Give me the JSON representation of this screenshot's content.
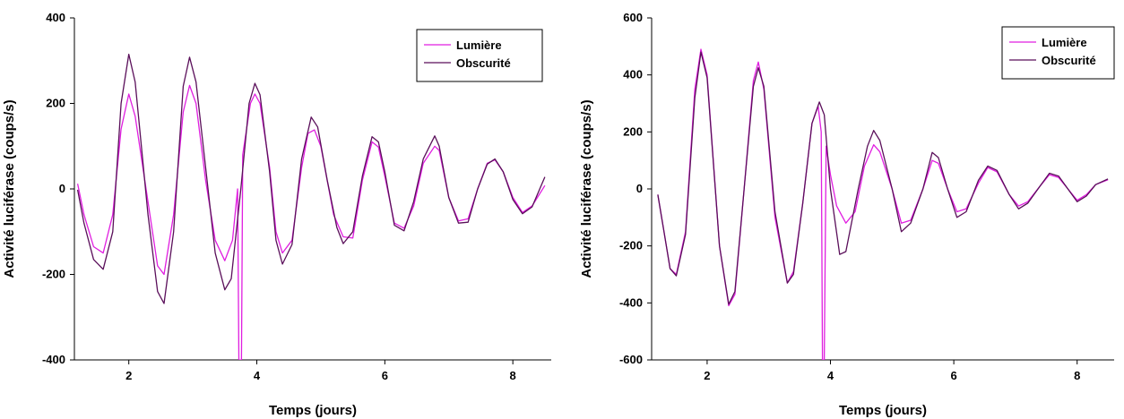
{
  "colors": {
    "lumiere": "#e01ee0",
    "obscurite": "#5a0f5a",
    "axis": "#000000"
  },
  "chart_data": [
    {
      "type": "line",
      "xlabel": "Temps (jours)",
      "ylabel": "Activité luciférase (coups/s)",
      "xlim": [
        1.15,
        8.6
      ],
      "ylim": [
        -400,
        400
      ],
      "xticks": [
        2,
        4,
        6,
        8
      ],
      "yticks": [
        -400,
        -200,
        0,
        200,
        400
      ],
      "grid": false,
      "legend_position": "top-right",
      "series": [
        {
          "name": "Lumière",
          "color_key": "lumiere",
          "points": [
            [
              1.2,
              12
            ],
            [
              1.3,
              -60
            ],
            [
              1.45,
              -135
            ],
            [
              1.6,
              -150
            ],
            [
              1.75,
              -60
            ],
            [
              1.88,
              140
            ],
            [
              2.0,
              222
            ],
            [
              2.1,
              170
            ],
            [
              2.3,
              -30
            ],
            [
              2.45,
              -180
            ],
            [
              2.55,
              -200
            ],
            [
              2.7,
              -60
            ],
            [
              2.85,
              180
            ],
            [
              2.95,
              242
            ],
            [
              3.05,
              200
            ],
            [
              3.2,
              20
            ],
            [
              3.35,
              -120
            ],
            [
              3.5,
              -168
            ],
            [
              3.62,
              -120
            ],
            [
              3.7,
              0
            ],
            [
              3.72,
              -400
            ],
            [
              3.76,
              -400
            ],
            [
              3.78,
              80
            ],
            [
              3.9,
              200
            ],
            [
              3.97,
              222
            ],
            [
              4.05,
              200
            ],
            [
              4.2,
              50
            ],
            [
              4.3,
              -100
            ],
            [
              4.4,
              -150
            ],
            [
              4.55,
              -120
            ],
            [
              4.7,
              50
            ],
            [
              4.8,
              130
            ],
            [
              4.9,
              138
            ],
            [
              5.0,
              100
            ],
            [
              5.2,
              -60
            ],
            [
              5.35,
              -112
            ],
            [
              5.5,
              -115
            ],
            [
              5.65,
              20
            ],
            [
              5.8,
              110
            ],
            [
              5.9,
              98
            ],
            [
              6.0,
              30
            ],
            [
              6.15,
              -80
            ],
            [
              6.3,
              -92
            ],
            [
              6.45,
              -40
            ],
            [
              6.6,
              60
            ],
            [
              6.78,
              100
            ],
            [
              6.85,
              90
            ],
            [
              7.0,
              -20
            ],
            [
              7.15,
              -75
            ],
            [
              7.3,
              -70
            ],
            [
              7.45,
              0
            ],
            [
              7.6,
              60
            ],
            [
              7.72,
              68
            ],
            [
              7.85,
              40
            ],
            [
              8.0,
              -20
            ],
            [
              8.15,
              -55
            ],
            [
              8.3,
              -40
            ],
            [
              8.5,
              8
            ]
          ]
        },
        {
          "name": "Obscurité",
          "color_key": "obscurite",
          "points": [
            [
              1.2,
              -2
            ],
            [
              1.3,
              -80
            ],
            [
              1.45,
              -165
            ],
            [
              1.6,
              -188
            ],
            [
              1.75,
              -100
            ],
            [
              1.88,
              200
            ],
            [
              2.0,
              315
            ],
            [
              2.1,
              250
            ],
            [
              2.3,
              -60
            ],
            [
              2.45,
              -240
            ],
            [
              2.55,
              -268
            ],
            [
              2.7,
              -100
            ],
            [
              2.85,
              240
            ],
            [
              2.95,
              308
            ],
            [
              3.05,
              250
            ],
            [
              3.2,
              50
            ],
            [
              3.35,
              -150
            ],
            [
              3.5,
              -236
            ],
            [
              3.6,
              -210
            ],
            [
              3.75,
              0
            ],
            [
              3.88,
              200
            ],
            [
              3.97,
              247
            ],
            [
              4.05,
              220
            ],
            [
              4.2,
              40
            ],
            [
              4.3,
              -120
            ],
            [
              4.4,
              -176
            ],
            [
              4.55,
              -130
            ],
            [
              4.7,
              70
            ],
            [
              4.85,
              168
            ],
            [
              4.95,
              145
            ],
            [
              5.1,
              20
            ],
            [
              5.25,
              -90
            ],
            [
              5.35,
              -128
            ],
            [
              5.5,
              -100
            ],
            [
              5.65,
              30
            ],
            [
              5.8,
              122
            ],
            [
              5.9,
              110
            ],
            [
              6.0,
              40
            ],
            [
              6.15,
              -85
            ],
            [
              6.3,
              -98
            ],
            [
              6.45,
              -30
            ],
            [
              6.6,
              70
            ],
            [
              6.78,
              124
            ],
            [
              6.85,
              100
            ],
            [
              7.0,
              -20
            ],
            [
              7.15,
              -80
            ],
            [
              7.3,
              -78
            ],
            [
              7.45,
              0
            ],
            [
              7.6,
              58
            ],
            [
              7.72,
              70
            ],
            [
              7.85,
              40
            ],
            [
              8.0,
              -25
            ],
            [
              8.15,
              -58
            ],
            [
              8.3,
              -42
            ],
            [
              8.5,
              28
            ]
          ]
        }
      ]
    },
    {
      "type": "line",
      "xlabel": "Temps (jours)",
      "ylabel": "Activité luciférase (coups/s)",
      "xlim": [
        1.1,
        8.6
      ],
      "ylim": [
        -600,
        600
      ],
      "xticks": [
        2,
        4,
        6,
        8
      ],
      "yticks": [
        -600,
        -400,
        -200,
        0,
        200,
        400,
        600
      ],
      "grid": false,
      "legend_position": "top-right",
      "series": [
        {
          "name": "Lumière",
          "color_key": "lumiere",
          "points": [
            [
              1.2,
              -20
            ],
            [
              1.3,
              -150
            ],
            [
              1.4,
              -280
            ],
            [
              1.5,
              -300
            ],
            [
              1.65,
              -150
            ],
            [
              1.8,
              350
            ],
            [
              1.9,
              490
            ],
            [
              2.0,
              400
            ],
            [
              2.2,
              -200
            ],
            [
              2.35,
              -410
            ],
            [
              2.45,
              -370
            ],
            [
              2.6,
              0
            ],
            [
              2.75,
              380
            ],
            [
              2.83,
              445
            ],
            [
              2.92,
              350
            ],
            [
              3.1,
              -100
            ],
            [
              3.3,
              -330
            ],
            [
              3.4,
              -290
            ],
            [
              3.55,
              -50
            ],
            [
              3.7,
              230
            ],
            [
              3.8,
              290
            ],
            [
              3.85,
              200
            ],
            [
              3.87,
              -600
            ],
            [
              3.9,
              -600
            ],
            [
              3.93,
              150
            ],
            [
              4.0,
              50
            ],
            [
              4.1,
              -60
            ],
            [
              4.25,
              -120
            ],
            [
              4.4,
              -80
            ],
            [
              4.55,
              80
            ],
            [
              4.7,
              155
            ],
            [
              4.8,
              130
            ],
            [
              5.0,
              0
            ],
            [
              5.15,
              -120
            ],
            [
              5.3,
              -110
            ],
            [
              5.5,
              0
            ],
            [
              5.65,
              100
            ],
            [
              5.75,
              90
            ],
            [
              5.9,
              0
            ],
            [
              6.05,
              -80
            ],
            [
              6.2,
              -70
            ],
            [
              6.4,
              20
            ],
            [
              6.55,
              75
            ],
            [
              6.7,
              60
            ],
            [
              6.9,
              -20
            ],
            [
              7.05,
              -60
            ],
            [
              7.2,
              -45
            ],
            [
              7.4,
              10
            ],
            [
              7.55,
              50
            ],
            [
              7.7,
              40
            ],
            [
              7.85,
              0
            ],
            [
              8.0,
              -40
            ],
            [
              8.15,
              -20
            ],
            [
              8.3,
              15
            ],
            [
              8.5,
              32
            ]
          ]
        },
        {
          "name": "Obscurité",
          "color_key": "obscurite",
          "points": [
            [
              1.2,
              -20
            ],
            [
              1.3,
              -150
            ],
            [
              1.4,
              -280
            ],
            [
              1.5,
              -305
            ],
            [
              1.65,
              -160
            ],
            [
              1.8,
              320
            ],
            [
              1.9,
              480
            ],
            [
              2.0,
              390
            ],
            [
              2.2,
              -200
            ],
            [
              2.35,
              -405
            ],
            [
              2.45,
              -360
            ],
            [
              2.6,
              0
            ],
            [
              2.75,
              360
            ],
            [
              2.83,
              425
            ],
            [
              2.92,
              360
            ],
            [
              3.1,
              -80
            ],
            [
              3.3,
              -330
            ],
            [
              3.4,
              -300
            ],
            [
              3.55,
              -50
            ],
            [
              3.7,
              230
            ],
            [
              3.82,
              305
            ],
            [
              3.9,
              260
            ],
            [
              4.0,
              0
            ],
            [
              4.15,
              -230
            ],
            [
              4.25,
              -220
            ],
            [
              4.45,
              0
            ],
            [
              4.6,
              150
            ],
            [
              4.7,
              205
            ],
            [
              4.8,
              170
            ],
            [
              5.0,
              0
            ],
            [
              5.15,
              -150
            ],
            [
              5.3,
              -120
            ],
            [
              5.5,
              0
            ],
            [
              5.65,
              128
            ],
            [
              5.75,
              110
            ],
            [
              5.9,
              0
            ],
            [
              6.05,
              -100
            ],
            [
              6.2,
              -80
            ],
            [
              6.4,
              30
            ],
            [
              6.55,
              80
            ],
            [
              6.7,
              65
            ],
            [
              6.9,
              -20
            ],
            [
              7.05,
              -70
            ],
            [
              7.2,
              -50
            ],
            [
              7.4,
              10
            ],
            [
              7.55,
              55
            ],
            [
              7.7,
              45
            ],
            [
              7.85,
              0
            ],
            [
              8.0,
              -45
            ],
            [
              8.15,
              -25
            ],
            [
              8.3,
              15
            ],
            [
              8.5,
              35
            ]
          ]
        }
      ]
    }
  ]
}
